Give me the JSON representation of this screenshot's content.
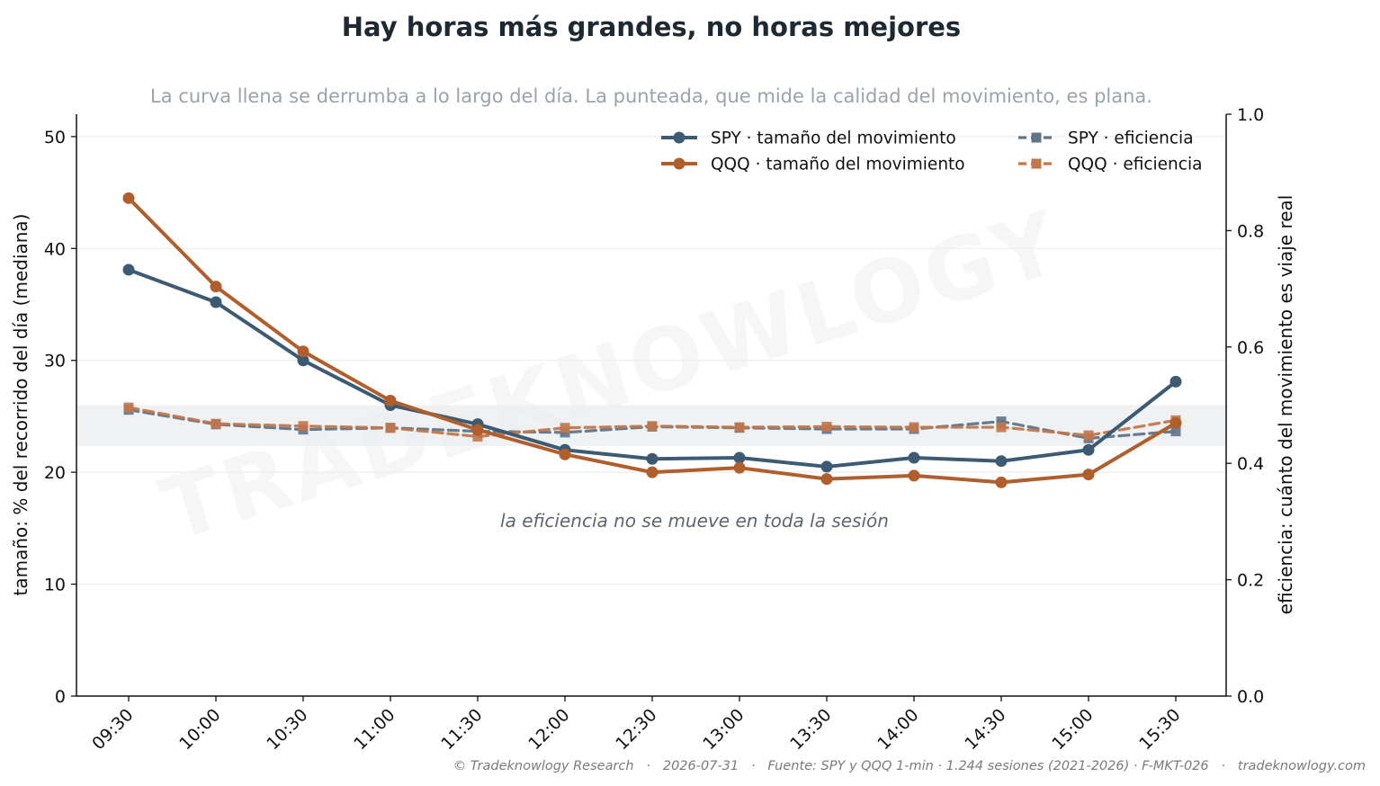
{
  "chart_data": {
    "type": "line",
    "title": "Hay horas más grandes, no horas mejores",
    "subtitle": "La curva llena se derrumba a lo largo del día. La punteada, que mide la calidad del movimiento, es plana.",
    "ylabel_left": "tamaño: % del recorrido del día (mediana)",
    "ylabel_right": "eficiencia: cuánto del movimiento es viaje real",
    "ylim_left": [
      0,
      52
    ],
    "yticks_left": [
      0,
      10,
      20,
      30,
      40,
      50
    ],
    "ylim_right": [
      0,
      1.0
    ],
    "yticks_right": [
      "0.0",
      "0.2",
      "0.4",
      "0.6",
      "0.8",
      "1.0"
    ],
    "categories": [
      "09:30",
      "10:00",
      "10:30",
      "11:00",
      "11:30",
      "12:00",
      "12:30",
      "13:00",
      "13:30",
      "14:00",
      "14:30",
      "15:00",
      "15:30"
    ],
    "band_right": [
      0.43,
      0.5
    ],
    "grid": "horizontal",
    "legend_position": "top-right",
    "series": [
      {
        "name": "SPY · tamaño del movimiento",
        "axis": "left",
        "style": "solid",
        "marker": "circle",
        "color": "#3d5a73",
        "values": [
          38.1,
          35.2,
          30.0,
          26.0,
          24.3,
          22.0,
          21.2,
          21.3,
          20.5,
          21.3,
          21.0,
          22.0,
          28.1
        ]
      },
      {
        "name": "QQQ · tamaño del movimiento",
        "axis": "left",
        "style": "solid",
        "marker": "circle",
        "color": "#b05e2b",
        "values": [
          44.5,
          36.6,
          30.8,
          26.4,
          23.8,
          21.6,
          20.0,
          20.4,
          19.4,
          19.7,
          19.1,
          19.8,
          24.4
        ]
      },
      {
        "name": "SPY · eficiencia",
        "axis": "right",
        "style": "dashed",
        "marker": "square",
        "color": "#5d7489",
        "values": [
          0.492,
          0.467,
          0.458,
          0.461,
          0.455,
          0.453,
          0.463,
          0.461,
          0.459,
          0.459,
          0.472,
          0.443,
          0.455
        ]
      },
      {
        "name": "QQQ · eficiencia",
        "axis": "right",
        "style": "dashed",
        "marker": "square",
        "color": "#c2764a",
        "values": [
          0.496,
          0.468,
          0.464,
          0.461,
          0.446,
          0.461,
          0.464,
          0.462,
          0.463,
          0.462,
          0.462,
          0.448,
          0.474
        ]
      }
    ],
    "annotation": "la eficiencia no se mueve en toda la sesión"
  },
  "watermark": "TRADEKNOWLOGY",
  "footer": "© Tradeknowlogy Research   ·   2026-07-31   ·   Fuente: SPY y QQQ 1-min · 1.244 sesiones (2021-2026) · F-MKT-026   ·   tradeknowlogy.com"
}
